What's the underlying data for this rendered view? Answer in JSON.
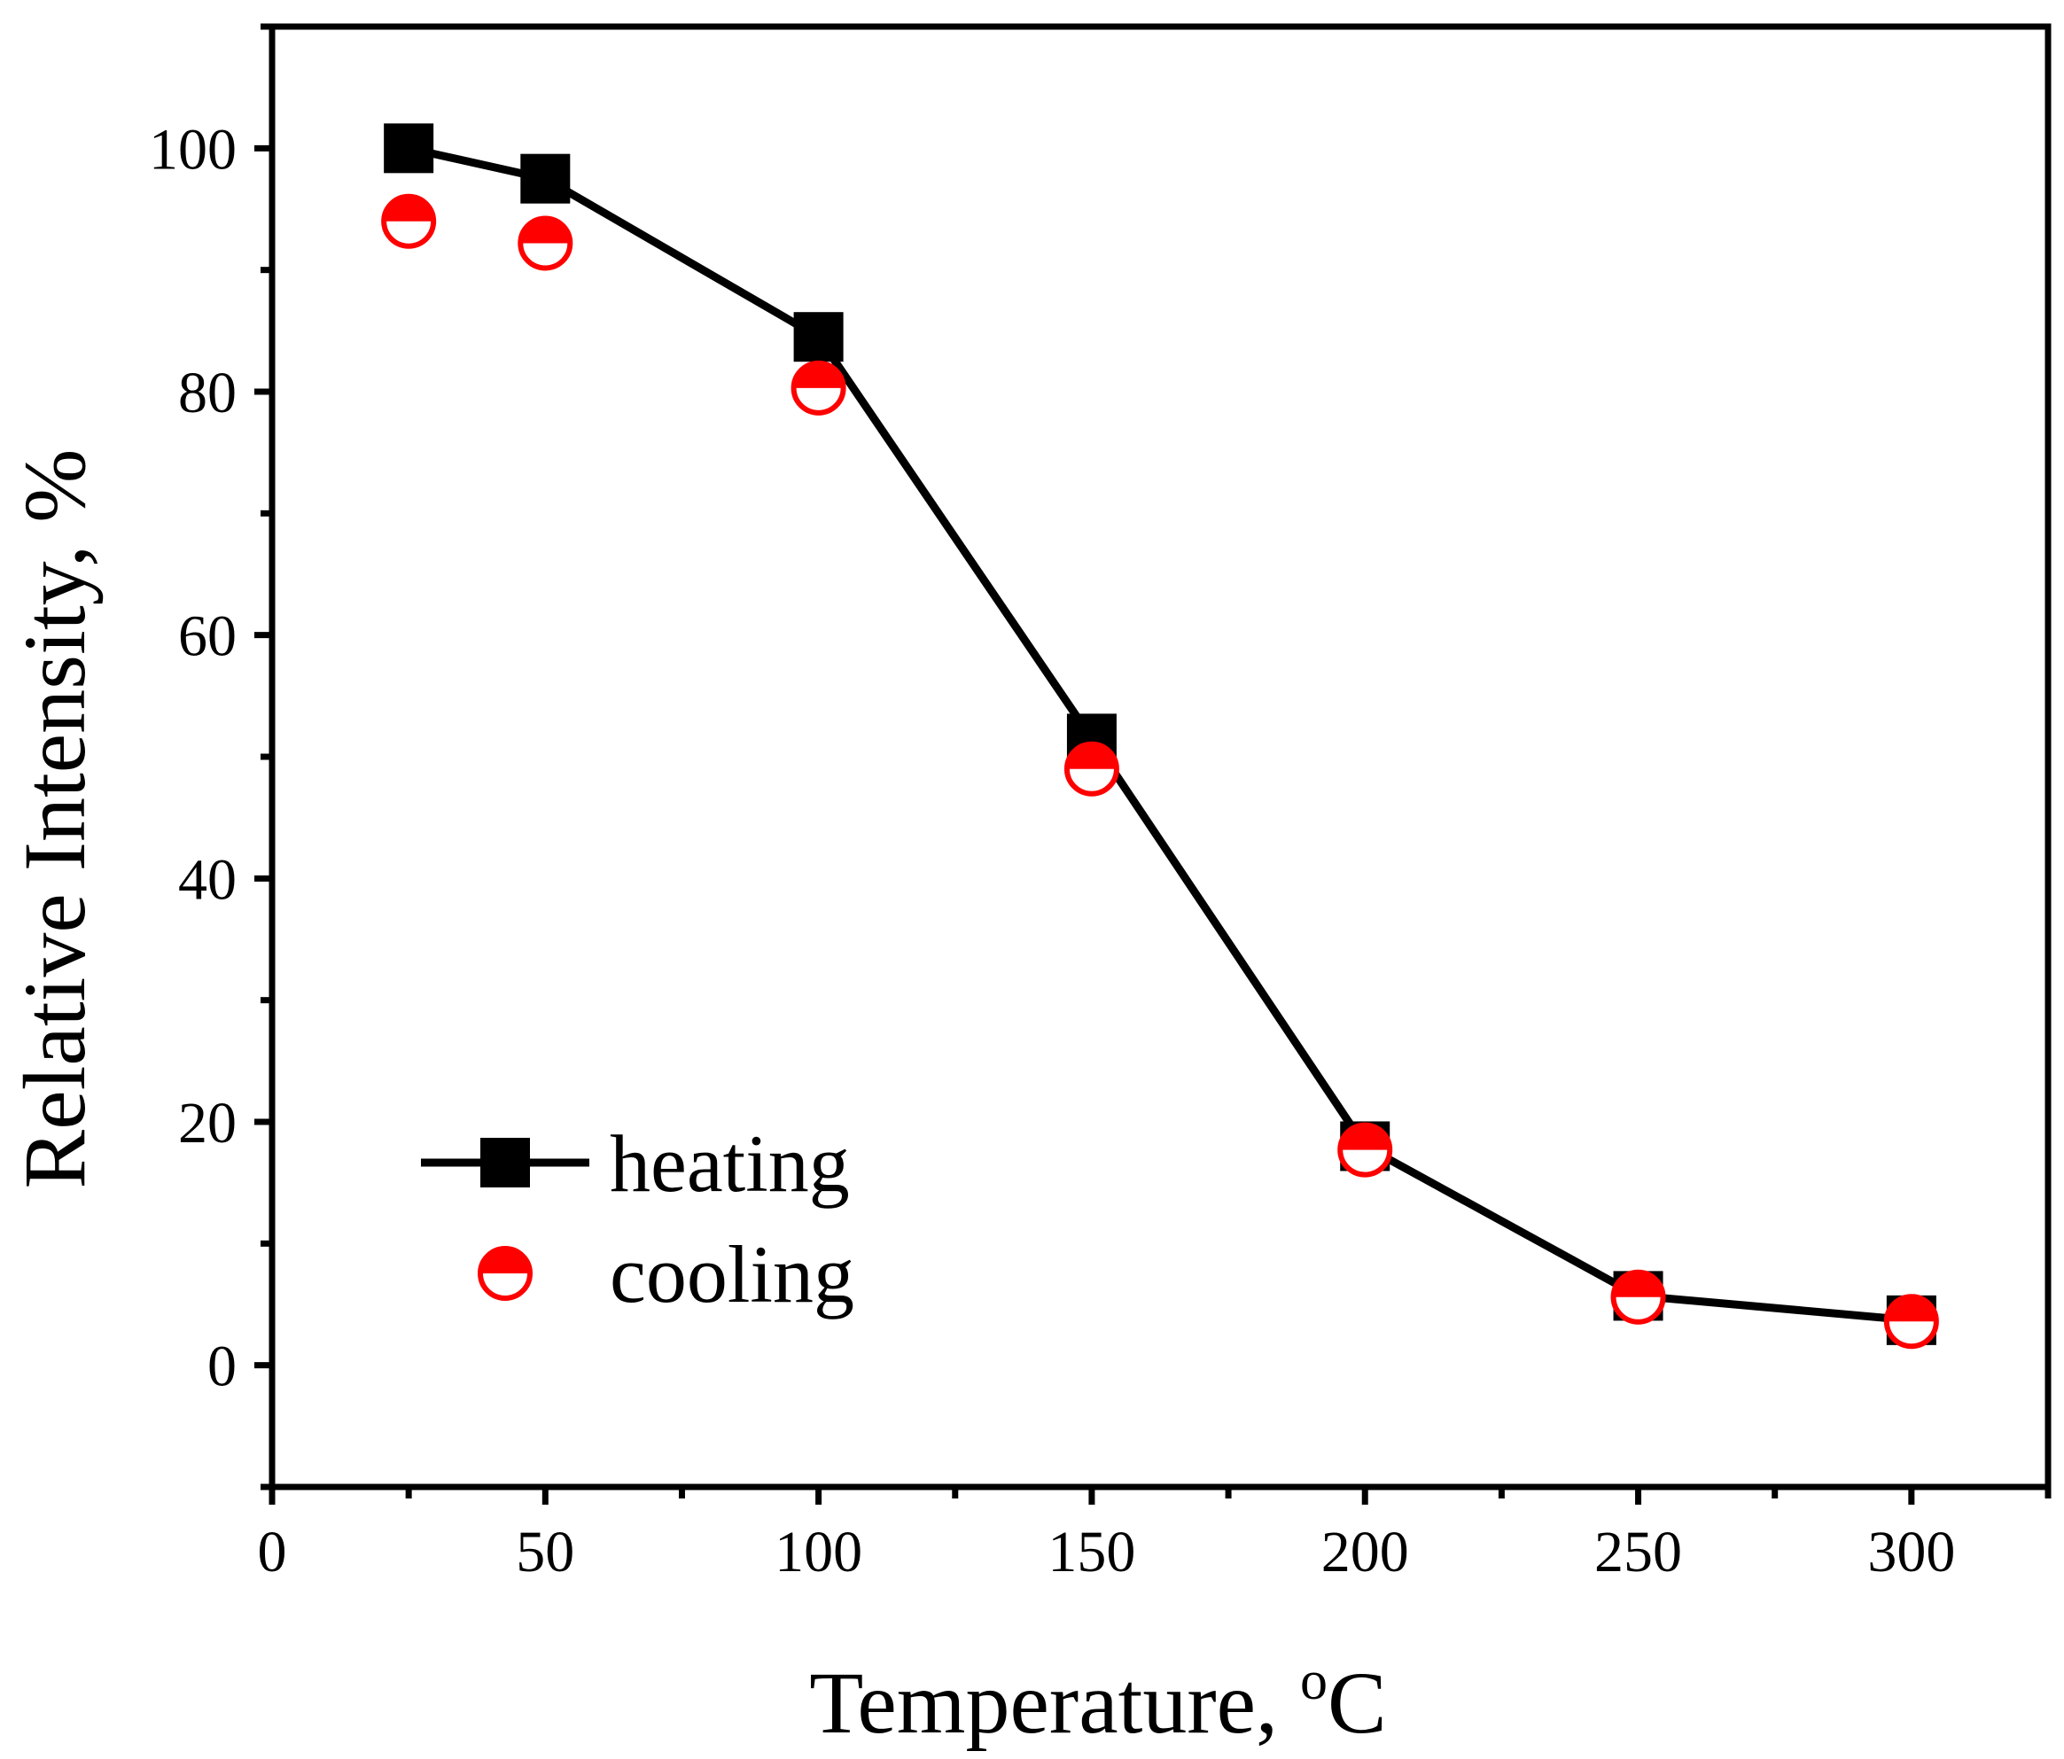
{
  "chart_data": {
    "type": "line",
    "title": "",
    "xlabel": "Temperature, ",
    "xlabel_superscript": "o",
    "xlabel_unit": "C",
    "ylabel": "Relative Intensity, %",
    "xlim": [
      0,
      325
    ],
    "ylim": [
      -10,
      110
    ],
    "x_ticks": [
      0,
      50,
      100,
      150,
      200,
      250,
      300
    ],
    "y_ticks": [
      0,
      20,
      40,
      60,
      80,
      100
    ],
    "x_tick_labels": [
      "0",
      "50",
      "100",
      "150",
      "200",
      "250",
      "300"
    ],
    "y_tick_labels": [
      "0",
      "20",
      "40",
      "60",
      "80",
      "100"
    ],
    "grid": false,
    "legend_position": "lower-left",
    "series": [
      {
        "name": "heating",
        "marker": "square",
        "line": true,
        "color": "#000000",
        "x": [
          25,
          50,
          100,
          150,
          200,
          250,
          300
        ],
        "y": [
          100,
          97.5,
          84.5,
          51.5,
          18,
          5.7,
          3.7
        ]
      },
      {
        "name": "cooling",
        "marker": "half-filled-circle",
        "line": false,
        "color": "#ff0000",
        "x": [
          25,
          50,
          100,
          150,
          200,
          250,
          300
        ],
        "y": [
          94,
          92.2,
          80.3,
          49,
          17.7,
          5.6,
          3.6
        ]
      }
    ]
  }
}
